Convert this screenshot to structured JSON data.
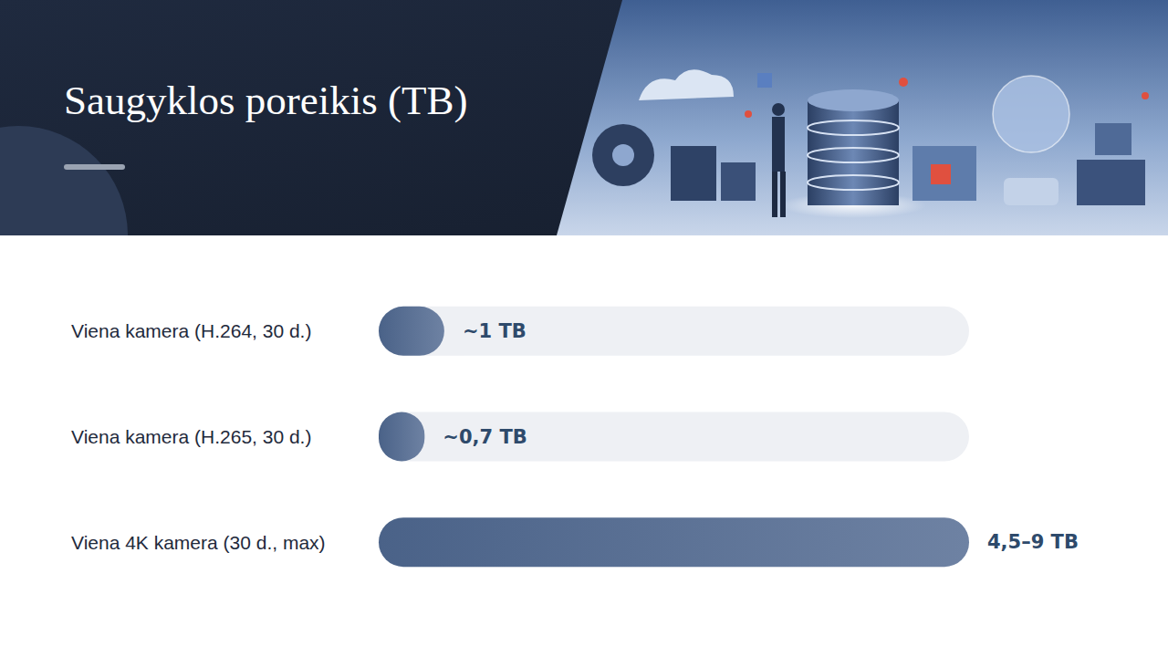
{
  "chart_data": {
    "type": "bar",
    "orientation": "horizontal",
    "title": "Saugyklos poreikis (TB)",
    "categories": [
      "Viena kamera (H.264, 30 d.)",
      "Viena kamera (H.265, 30 d.)",
      "Viena 4K kamera (30 d., max)"
    ],
    "values": [
      1,
      0.7,
      9
    ],
    "value_labels": [
      "~1 TB",
      "~0,7 TB",
      "4,5–9 TB"
    ],
    "xlim": [
      0,
      9
    ],
    "data_labels": true,
    "tick_labels": "y",
    "grid": false,
    "color": "#4a6288"
  }
}
